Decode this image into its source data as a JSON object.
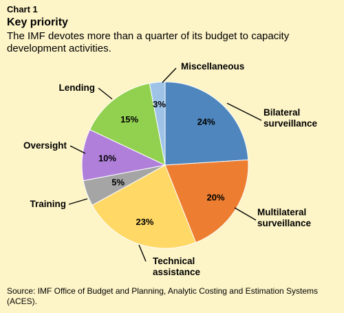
{
  "header": {
    "chart_number": "Chart 1",
    "title": "Key priority",
    "subtitle": "The IMF devotes more than a quarter of its budget to capacity development activities."
  },
  "footer": {
    "source": "Source: IMF Office of Budget and Planning, Analytic Costing and Estimation Systems (ACES)."
  },
  "chart_data": {
    "type": "pie",
    "title": "Key priority",
    "unit": "%",
    "start": "12 o'clock, clockwise",
    "slices": [
      {
        "label": [
          "Bilateral",
          "surveillance"
        ],
        "value": 24,
        "value_label": "24%",
        "color": "#4e86bd"
      },
      {
        "label": [
          "Multilateral",
          "surveillance"
        ],
        "value": 20,
        "value_label": "20%",
        "color": "#ed7e31"
      },
      {
        "label": [
          "Technical",
          "assistance"
        ],
        "value": 23,
        "value_label": "23%",
        "color": "#ffd865"
      },
      {
        "label": [
          "Training"
        ],
        "value": 5,
        "value_label": "5%",
        "color": "#a5a5a5"
      },
      {
        "label": [
          "Oversight"
        ],
        "value": 10,
        "value_label": "10%",
        "color": "#b07fda"
      },
      {
        "label": [
          "Lending"
        ],
        "value": 15,
        "value_label": "15%",
        "color": "#92d050"
      },
      {
        "label": [
          "Miscellaneous"
        ],
        "value": 3,
        "value_label": "3%",
        "color": "#9fc3e7"
      }
    ]
  }
}
